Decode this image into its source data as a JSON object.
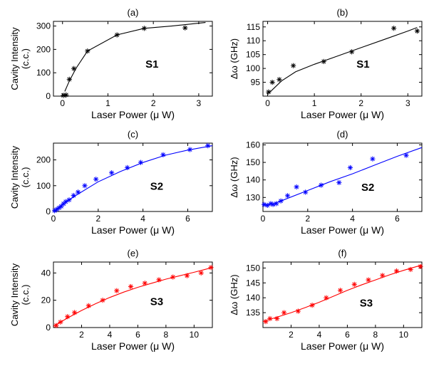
{
  "chart_data": [
    {
      "type": "scatter",
      "title": "(a)",
      "annotation": "S1",
      "xlabel": "Laser Power (μ W)",
      "ylabel_lines": [
        "Cavity Intensity",
        "(c.c.)"
      ],
      "xlim": [
        -0.2,
        3.3
      ],
      "ylim": [
        0,
        320
      ],
      "xticks": [
        0,
        1,
        2,
        3
      ],
      "yticks": [
        0,
        100,
        200,
        300
      ],
      "color": "#000000",
      "series": [
        {
          "kind": "points",
          "x": [
            0.02,
            0.08,
            0.15,
            0.25,
            0.55,
            1.2,
            1.8,
            2.7
          ],
          "y": [
            3,
            5,
            72,
            118,
            193,
            262,
            290,
            292
          ]
        },
        {
          "kind": "fit",
          "x": [
            0.05,
            0.15,
            0.3,
            0.55,
            1.2,
            1.8,
            2.4,
            3.15
          ],
          "y": [
            20,
            65,
            120,
            193,
            262,
            290,
            300,
            315
          ]
        }
      ]
    },
    {
      "type": "scatter",
      "title": "(b)",
      "annotation": "S1",
      "xlabel": "Laser Power (μ W)",
      "ylabel_lines": [
        "Δω (GHz)"
      ],
      "xlim": [
        -0.1,
        3.3
      ],
      "ylim": [
        90,
        117
      ],
      "xticks": [
        0,
        1,
        2,
        3
      ],
      "yticks": [
        95,
        100,
        105,
        110,
        115
      ],
      "color": "#000000",
      "series": [
        {
          "kind": "points",
          "x": [
            0.02,
            0.1,
            0.25,
            0.55,
            1.2,
            1.8,
            2.7,
            3.2
          ],
          "y": [
            91.5,
            95,
            96,
            101,
            102.5,
            106,
            114.5,
            113.5
          ]
        },
        {
          "kind": "fit",
          "x": [
            0.02,
            0.3,
            0.6,
            1.0,
            1.5,
            2.0,
            2.5,
            3.0,
            3.2
          ],
          "y": [
            91,
            95.5,
            98.8,
            101.5,
            104.5,
            107.5,
            110.5,
            113.5,
            114.8
          ]
        }
      ]
    },
    {
      "type": "scatter",
      "title": "(c)",
      "annotation": "S2",
      "xlabel": "Laser Power (μ W)",
      "ylabel_lines": [
        "Cavity Intensity",
        "(c.c.)"
      ],
      "xlim": [
        0,
        7.1
      ],
      "ylim": [
        0,
        265
      ],
      "xticks": [
        0,
        2,
        4,
        6
      ],
      "yticks": [
        0,
        100,
        200
      ],
      "color": "#0000ff",
      "series": [
        {
          "kind": "points",
          "x": [
            0.05,
            0.15,
            0.25,
            0.35,
            0.45,
            0.55,
            0.7,
            0.9,
            1.1,
            1.4,
            1.9,
            2.6,
            3.3,
            3.9,
            4.9,
            6.1,
            6.9
          ],
          "y": [
            3,
            8,
            14,
            20,
            30,
            38,
            45,
            62,
            75,
            100,
            125,
            150,
            170,
            190,
            220,
            240,
            255
          ]
        },
        {
          "kind": "fit",
          "x": [
            0,
            0.5,
            1,
            2,
            3,
            4,
            5,
            6,
            7.1
          ],
          "y": [
            0,
            33,
            62,
            115,
            155,
            190,
            218,
            238,
            255
          ]
        }
      ]
    },
    {
      "type": "scatter",
      "title": "(d)",
      "annotation": "S2",
      "xlabel": "Laser Power (μ W)",
      "ylabel_lines": [
        "Δω (GHz)"
      ],
      "xlim": [
        0,
        7.1
      ],
      "ylim": [
        122,
        161
      ],
      "xticks": [
        0,
        2,
        4,
        6
      ],
      "yticks": [
        130,
        140,
        150,
        160
      ],
      "color": "#0000ff",
      "series": [
        {
          "kind": "points",
          "x": [
            0.05,
            0.2,
            0.35,
            0.45,
            0.6,
            0.8,
            1.1,
            1.5,
            1.9,
            2.6,
            3.4,
            3.9,
            4.9,
            6.4
          ],
          "y": [
            126,
            125.5,
            126.5,
            126,
            126.5,
            128,
            131,
            136,
            133,
            137,
            138.5,
            147,
            152,
            154
          ]
        },
        {
          "kind": "fit",
          "x": [
            0,
            0.5,
            1,
            2,
            3,
            4,
            5,
            6,
            7.1
          ],
          "y": [
            125.5,
            126.5,
            129,
            134,
            139,
            143.5,
            148.5,
            153.5,
            158.5
          ]
        }
      ]
    },
    {
      "type": "scatter",
      "title": "(e)",
      "annotation": "S3",
      "xlabel": "Laser Power (μ W)",
      "ylabel_lines": [
        "Cavity Intensity",
        "(c.c.)"
      ],
      "xlim": [
        0,
        11.3
      ],
      "ylim": [
        0,
        48
      ],
      "xticks": [
        2,
        4,
        6,
        8,
        10
      ],
      "yticks": [
        0,
        20,
        40
      ],
      "color": "#ff0000",
      "series": [
        {
          "kind": "points",
          "x": [
            0.2,
            0.5,
            1.0,
            1.5,
            2.5,
            3.5,
            4.5,
            5.5,
            6.5,
            7.5,
            8.5,
            9.5,
            10.5,
            11.2
          ],
          "y": [
            1.5,
            4,
            8,
            11,
            16,
            20,
            27,
            30,
            32.5,
            35,
            37,
            38,
            40,
            44
          ]
        },
        {
          "kind": "fit",
          "x": [
            0,
            1,
            2,
            3,
            4,
            5,
            6,
            7,
            8,
            9,
            10,
            11.3
          ],
          "y": [
            1,
            7,
            12.5,
            17.5,
            22,
            26,
            29.5,
            32.5,
            35.5,
            38,
            40.5,
            44
          ]
        }
      ]
    },
    {
      "type": "scatter",
      "title": "(f)",
      "annotation": "S3",
      "xlabel": "Laser Power (μ W)",
      "ylabel_lines": [
        "Δω (GHz)"
      ],
      "xlim": [
        0,
        11.3
      ],
      "ylim": [
        130,
        152
      ],
      "xticks": [
        2,
        4,
        6,
        8,
        10
      ],
      "yticks": [
        135,
        140,
        145,
        150
      ],
      "color": "#ff0000",
      "series": [
        {
          "kind": "points",
          "x": [
            0.2,
            0.5,
            1.0,
            1.5,
            2.5,
            3.5,
            4.5,
            5.5,
            6.5,
            7.5,
            8.5,
            9.5,
            10.5,
            11.2
          ],
          "y": [
            132,
            133,
            133,
            135,
            135.5,
            137.5,
            140,
            142.5,
            144.5,
            146,
            147.5,
            149,
            149.5,
            150.5
          ]
        },
        {
          "kind": "fit",
          "x": [
            0,
            1,
            2,
            3,
            4,
            5,
            6,
            7,
            8,
            9,
            10,
            11.3
          ],
          "y": [
            132,
            133.5,
            135,
            136.7,
            138.5,
            140.5,
            142.5,
            144.3,
            146,
            147.7,
            149.2,
            151
          ]
        }
      ]
    }
  ]
}
